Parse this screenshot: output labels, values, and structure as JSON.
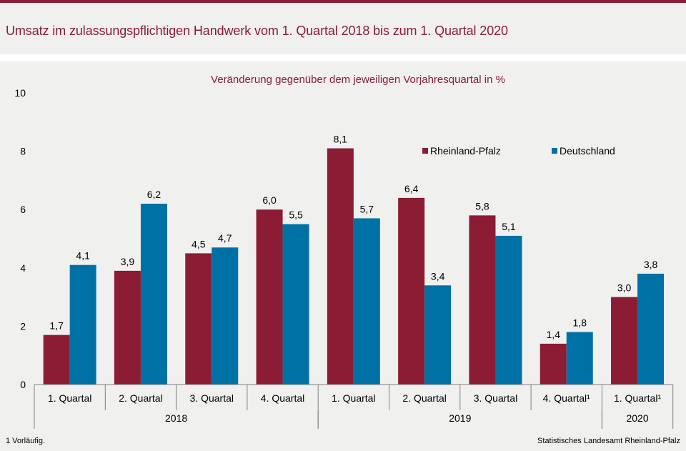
{
  "title": "Umsatz im zulassungspflichtigen Handwerk vom 1. Quartal 2018 bis zum 1. Quartal 2020",
  "footnote": "1 Vorläufig.",
  "source": "Statistisches Landesamt Rheinland-Pfalz",
  "colors": {
    "accent": "#8b1c33",
    "rlp": "#8b1c33",
    "de": "#0071a4",
    "background": "#f0f0ef"
  },
  "chart_data": {
    "type": "bar",
    "subtitle": "Veränderung gegenüber dem jeweiligen Vorjahresquartal in %",
    "categories": [
      "1. Quartal",
      "2. Quartal",
      "3. Quartal",
      "4. Quartal",
      "1. Quartal",
      "2. Quartal",
      "3. Quartal",
      "4. Quartal¹",
      "1. Quartal¹"
    ],
    "groups": [
      {
        "label": "2018",
        "count": 4
      },
      {
        "label": "2019",
        "count": 4
      },
      {
        "label": "2020",
        "count": 1
      }
    ],
    "series": [
      {
        "name": "Rheinland-Pfalz",
        "values": [
          1.7,
          3.9,
          4.5,
          6.0,
          8.1,
          6.4,
          5.8,
          1.4,
          3.0
        ],
        "labels": [
          "1,7",
          "3,9",
          "4,5",
          "6,0",
          "8,1",
          "6,4",
          "5,8",
          "1,4",
          "3,0"
        ]
      },
      {
        "name": "Deutschland",
        "values": [
          4.1,
          6.2,
          4.7,
          5.5,
          5.7,
          3.4,
          5.1,
          1.8,
          3.8
        ],
        "labels": [
          "4,1",
          "6,2",
          "4,7",
          "5,5",
          "5,7",
          "3,4",
          "5,1",
          "1,8",
          "3,8"
        ]
      }
    ],
    "yticks": [
      "0",
      "2",
      "4",
      "6",
      "8",
      "10"
    ],
    "ylim": [
      0,
      10
    ],
    "grid": false,
    "legend": "top-right"
  }
}
